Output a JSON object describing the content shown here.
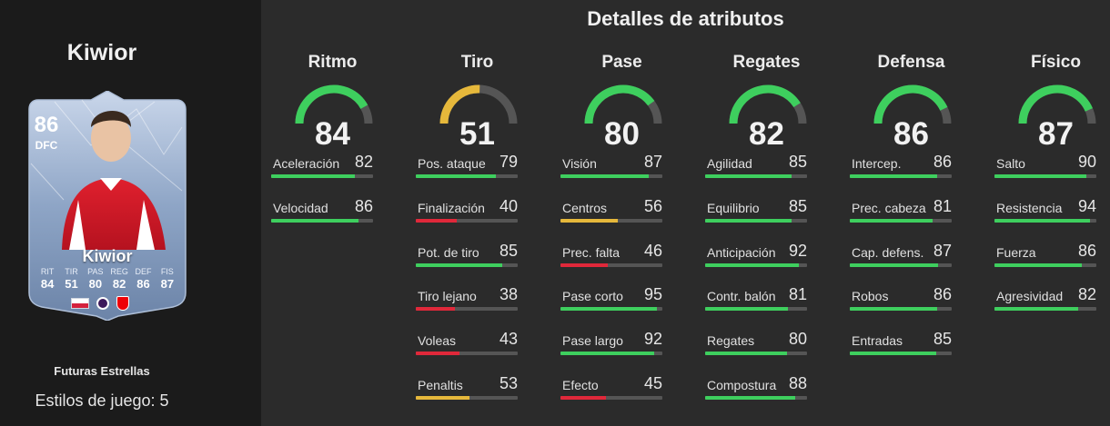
{
  "player": {
    "name": "Kiwior",
    "card_rating": "86",
    "card_position": "DFC",
    "card_name": "Kiwior",
    "card_stats": [
      {
        "label": "RIT",
        "value": "84"
      },
      {
        "label": "TIR",
        "value": "51"
      },
      {
        "label": "PAS",
        "value": "80"
      },
      {
        "label": "REG",
        "value": "82"
      },
      {
        "label": "DEF",
        "value": "86"
      },
      {
        "label": "FIS",
        "value": "87"
      }
    ],
    "promo": "Futuras Estrellas",
    "playstyles": "Estilos de juego: 5"
  },
  "title": "Detalles de atributos",
  "colors": {
    "high": "#3ecf5e",
    "mid": "#e6b83b",
    "low": "#e0283a",
    "track": "#555555"
  },
  "categories": [
    {
      "name": "Ritmo",
      "value": 84,
      "attributes": [
        {
          "label": "Aceleración",
          "value": 82
        },
        {
          "label": "Velocidad",
          "value": 86
        }
      ]
    },
    {
      "name": "Tiro",
      "value": 51,
      "attributes": [
        {
          "label": "Pos. ataque",
          "value": 79
        },
        {
          "label": "Finalización",
          "value": 40
        },
        {
          "label": "Pot. de tiro",
          "value": 85
        },
        {
          "label": "Tiro lejano",
          "value": 38
        },
        {
          "label": "Voleas",
          "value": 43
        },
        {
          "label": "Penaltis",
          "value": 53
        }
      ]
    },
    {
      "name": "Pase",
      "value": 80,
      "attributes": [
        {
          "label": "Visión",
          "value": 87
        },
        {
          "label": "Centros",
          "value": 56
        },
        {
          "label": "Prec. falta",
          "value": 46
        },
        {
          "label": "Pase corto",
          "value": 95
        },
        {
          "label": "Pase largo",
          "value": 92
        },
        {
          "label": "Efecto",
          "value": 45
        }
      ]
    },
    {
      "name": "Regates",
      "value": 82,
      "attributes": [
        {
          "label": "Agilidad",
          "value": 85
        },
        {
          "label": "Equilibrio",
          "value": 85
        },
        {
          "label": "Anticipación",
          "value": 92
        },
        {
          "label": "Contr. balón",
          "value": 81
        },
        {
          "label": "Regates",
          "value": 80
        },
        {
          "label": "Compostura",
          "value": 88
        }
      ]
    },
    {
      "name": "Defensa",
      "value": 86,
      "attributes": [
        {
          "label": "Intercep.",
          "value": 86
        },
        {
          "label": "Prec. cabeza",
          "value": 81
        },
        {
          "label": "Cap. defens.",
          "value": 87
        },
        {
          "label": "Robos",
          "value": 86
        },
        {
          "label": "Entradas",
          "value": 85
        }
      ]
    },
    {
      "name": "Físico",
      "value": 87,
      "attributes": [
        {
          "label": "Salto",
          "value": 90
        },
        {
          "label": "Resistencia",
          "value": 94
        },
        {
          "label": "Fuerza",
          "value": 86
        },
        {
          "label": "Agresividad",
          "value": 82
        }
      ]
    }
  ]
}
